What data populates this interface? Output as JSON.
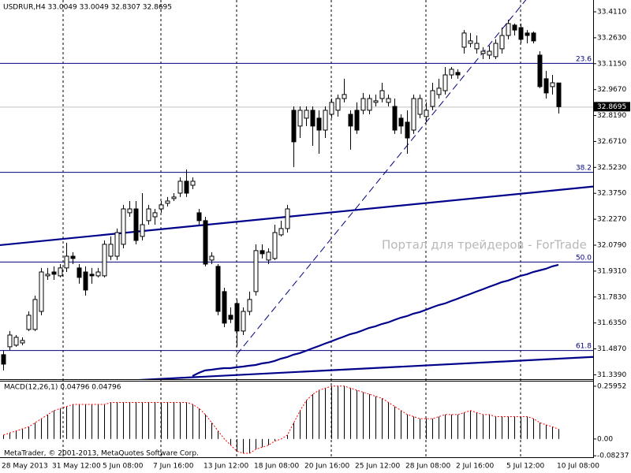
{
  "chart_data": [
    {
      "type": "candlestick",
      "title": "USDRUR,H4 33.0049 33.0049 32.8307 32.8695",
      "watermark": "Портал для трейдеров - ForTrade",
      "categories": [
        "28 May 2013",
        null,
        null,
        null,
        null,
        null,
        null,
        null,
        "31 May 12:00",
        null,
        null,
        null,
        null,
        null,
        null,
        null,
        "5 Jun 08:00",
        null,
        null,
        null,
        null,
        null,
        null,
        null,
        "7 Jun 16:00",
        null,
        null,
        null,
        null,
        null,
        null,
        null,
        "13 Jun 12:00",
        null,
        null,
        null,
        null,
        null,
        null,
        null,
        "18 Jun 08:00",
        null,
        null,
        null,
        null,
        null,
        null,
        null,
        "20 Jun 16:00",
        null,
        null,
        null,
        null,
        null,
        null,
        null,
        "25 Jun 12:00",
        null,
        null,
        null,
        null,
        null,
        null,
        null,
        "28 Jun 08:00",
        null,
        null,
        null,
        null,
        null,
        null,
        null,
        "2 Jul 16:00",
        null,
        null,
        null,
        null,
        null,
        null,
        null,
        "5 Jul 12:00",
        null,
        null,
        null,
        null,
        null,
        null,
        null,
        "10 Jul 08:00"
      ],
      "open": [
        31.454,
        31.499,
        31.508,
        31.521,
        31.598,
        31.598,
        31.701,
        31.904,
        31.926,
        31.904,
        31.949,
        32.016,
        31.949,
        31.926,
        31.913,
        31.904,
        31.904,
        32.016,
        32.016,
        32.084,
        32.264,
        32.286,
        32.129,
        32.219,
        32.241,
        32.286,
        32.318,
        32.345,
        32.376,
        32.444,
        32.421,
        32.264,
        32.219,
        31.994,
        31.958,
        31.814,
        31.679,
        31.746,
        31.589,
        31.701,
        31.814,
        32.048,
        31.994,
        32.003,
        32.138,
        32.174,
        32.849,
        32.759,
        32.804,
        32.849,
        32.804,
        32.736,
        32.826,
        32.849,
        32.916,
        32.826,
        32.849,
        32.849,
        32.849,
        32.894,
        32.916,
        32.894,
        32.871,
        32.804,
        32.781,
        32.736,
        32.826,
        32.813,
        32.871,
        32.939,
        32.961,
        33.051,
        33.065,
        33.209,
        33.231,
        33.2,
        33.173,
        33.164,
        33.155,
        33.2,
        33.276,
        33.335,
        33.321,
        33.29,
        33.29,
        33.164,
        33.029,
        32.984,
        33.0049
      ],
      "high": [
        31.476,
        31.589,
        31.566,
        31.553,
        31.701,
        31.791,
        31.949,
        31.949,
        31.958,
        31.971,
        32.093,
        32.039,
        31.971,
        31.958,
        31.949,
        31.949,
        32.106,
        32.129,
        32.174,
        32.309,
        32.331,
        32.331,
        32.376,
        32.309,
        32.286,
        32.331,
        32.354,
        32.376,
        32.466,
        32.511,
        32.466,
        32.286,
        32.241,
        32.039,
        31.971,
        31.836,
        31.724,
        31.769,
        31.724,
        31.814,
        32.084,
        32.084,
        32.061,
        32.196,
        32.219,
        32.309,
        32.871,
        32.871,
        32.871,
        32.871,
        32.849,
        32.871,
        32.916,
        32.939,
        33.029,
        32.849,
        32.894,
        32.948,
        32.939,
        32.939,
        33.006,
        32.939,
        32.916,
        32.826,
        32.849,
        32.939,
        32.939,
        32.894,
        33.006,
        33.029,
        33.096,
        33.096,
        33.083,
        33.307,
        33.29,
        33.276,
        33.209,
        33.218,
        33.254,
        33.321,
        33.366,
        33.344,
        33.344,
        33.307,
        33.299,
        33.186,
        33.074,
        33.051,
        33.0049
      ],
      "low": [
        31.364,
        31.476,
        31.499,
        31.508,
        31.589,
        31.589,
        31.679,
        31.881,
        31.881,
        31.895,
        31.926,
        31.971,
        31.859,
        31.791,
        31.859,
        31.895,
        31.895,
        31.994,
        31.994,
        32.061,
        32.241,
        32.084,
        32.106,
        32.196,
        32.196,
        32.264,
        32.3,
        32.331,
        32.354,
        32.354,
        32.399,
        32.196,
        31.958,
        31.971,
        31.679,
        31.611,
        31.634,
        31.499,
        31.566,
        31.679,
        31.791,
        32.003,
        31.971,
        31.994,
        32.129,
        32.151,
        32.525,
        32.691,
        32.759,
        32.646,
        32.601,
        32.691,
        32.804,
        32.813,
        32.894,
        32.624,
        32.714,
        32.826,
        32.826,
        32.871,
        32.894,
        32.871,
        32.714,
        32.714,
        32.601,
        32.714,
        32.804,
        32.781,
        32.849,
        32.916,
        32.939,
        33.029,
        33.029,
        33.173,
        33.209,
        33.173,
        33.141,
        33.141,
        33.141,
        33.173,
        33.254,
        33.276,
        33.231,
        33.231,
        33.231,
        32.975,
        32.916,
        32.939,
        32.8307
      ],
      "close": [
        31.4,
        31.566,
        31.553,
        31.535,
        31.679,
        31.769,
        31.926,
        31.913,
        31.913,
        31.949,
        32.016,
        32.003,
        31.895,
        31.823,
        31.904,
        31.926,
        32.084,
        32.084,
        32.151,
        32.286,
        32.286,
        32.106,
        32.196,
        32.286,
        32.264,
        32.309,
        32.331,
        32.354,
        32.444,
        32.376,
        32.444,
        32.219,
        31.971,
        32.016,
        31.701,
        31.634,
        31.656,
        31.589,
        31.701,
        31.769,
        32.048,
        32.03,
        32.039,
        32.151,
        32.174,
        32.286,
        32.669,
        32.849,
        32.849,
        32.759,
        32.736,
        32.849,
        32.894,
        32.916,
        32.939,
        32.759,
        32.736,
        32.916,
        32.916,
        32.903,
        32.961,
        32.916,
        32.736,
        32.759,
        32.691,
        32.916,
        32.916,
        32.849,
        32.961,
        32.975,
        33.051,
        33.083,
        33.051,
        33.29,
        33.245,
        33.231,
        33.186,
        33.186,
        33.231,
        33.276,
        33.344,
        33.307,
        33.254,
        33.276,
        33.245,
        32.984,
        32.948,
        33.006,
        32.8695
      ],
      "up_color": "#ffffff",
      "down_color": "#000000",
      "wick_color": "#000000",
      "lines": [
        {
          "color": "#00008b",
          "values": [
            null,
            null,
            null,
            null,
            null,
            null,
            null,
            null,
            null,
            null,
            null,
            null,
            null,
            null,
            null,
            null,
            null,
            null,
            null,
            null,
            null,
            null,
            null,
            null,
            null,
            null,
            null,
            null,
            null,
            null,
            31.332,
            31.35,
            31.364,
            31.368,
            31.373,
            31.377,
            31.377,
            31.382,
            31.386,
            31.391,
            31.395,
            31.404,
            31.409,
            31.418,
            31.431,
            31.44,
            31.454,
            31.463,
            31.476,
            31.49,
            31.503,
            31.517,
            31.53,
            31.544,
            31.557,
            31.571,
            31.58,
            31.593,
            31.607,
            31.616,
            31.629,
            31.638,
            31.652,
            31.665,
            31.674,
            31.688,
            31.697,
            31.71,
            31.724,
            31.737,
            31.746,
            31.76,
            31.773,
            31.787,
            31.8,
            31.814,
            31.827,
            31.841,
            31.854,
            31.868,
            31.877,
            31.89,
            31.904,
            31.913,
            31.926,
            31.935,
            31.944,
            31.958,
            31.967
          ]
        }
      ],
      "trendlines": [
        {
          "points": [
            [
              0,
              32.081
            ],
            [
              88,
              32.394
            ]
          ],
          "extend": "both",
          "dashed": false,
          "color": "#00008b"
        },
        {
          "points": [
            [
              29,
              31.323
            ],
            [
              88,
              31.431
            ]
          ],
          "extend": "both",
          "dashed": false,
          "color": "#00008b"
        },
        {
          "points": [
            [
              37,
              31.454
            ],
            [
              82,
              33.442
            ]
          ],
          "extend": "right",
          "dashed": true,
          "color": "#000080"
        }
      ],
      "levels": [
        {
          "label": "23.6",
          "value": 33.119
        },
        {
          "label": "38.2",
          "value": 32.497
        },
        {
          "label": "50.0",
          "value": 31.985
        },
        {
          "label": "61.8",
          "value": 31.48
        }
      ],
      "level_color": "#000080",
      "last_price": 32.8695,
      "ylim": [
        31.314,
        33.4785
      ],
      "yticks": [
        {
          "value": 33.411,
          "label": "33.4110"
        },
        {
          "value": 33.263,
          "label": "33.2630"
        },
        {
          "value": 33.115,
          "label": "33.1150"
        },
        {
          "value": 32.967,
          "label": "32.9670"
        },
        {
          "value": 32.819,
          "label": "32.8190"
        },
        {
          "value": 32.671,
          "label": "32.6710"
        },
        {
          "value": 32.523,
          "label": "32.5230"
        },
        {
          "value": 32.375,
          "label": "32.3750"
        },
        {
          "value": 32.227,
          "label": "32.2270"
        },
        {
          "value": 32.079,
          "label": "32.0790"
        },
        {
          "value": 31.931,
          "label": "31.9310"
        },
        {
          "value": 31.783,
          "label": "31.7830"
        },
        {
          "value": 31.635,
          "label": "31.6350"
        },
        {
          "value": 31.487,
          "label": "31.4870"
        },
        {
          "value": 31.339,
          "label": "31.3390"
        }
      ],
      "grid": false
    },
    {
      "type": "bar",
      "title": "MACD(12,26,1) 0.04796 0.04796",
      "footer": "MetaTrader, © 2001-2013, MetaQuotes Software Corp.",
      "values": [
        0.02,
        0.03,
        0.04,
        0.05,
        0.06,
        0.08,
        0.1,
        0.12,
        0.14,
        0.15,
        0.16,
        0.17,
        0.17,
        0.17,
        0.17,
        0.17,
        0.17,
        0.18,
        0.18,
        0.18,
        0.18,
        0.18,
        0.18,
        0.18,
        0.18,
        0.18,
        0.18,
        0.18,
        0.18,
        0.18,
        0.17,
        0.15,
        0.12,
        0.08,
        0.04,
        0.0,
        -0.03,
        -0.06,
        -0.07,
        -0.07,
        -0.05,
        -0.04,
        -0.03,
        -0.01,
        0.0,
        0.02,
        0.08,
        0.14,
        0.19,
        0.22,
        0.24,
        0.25,
        0.26,
        0.26,
        0.26,
        0.25,
        0.24,
        0.23,
        0.22,
        0.21,
        0.2,
        0.18,
        0.16,
        0.14,
        0.12,
        0.11,
        0.1,
        0.1,
        0.1,
        0.11,
        0.12,
        0.12,
        0.12,
        0.13,
        0.14,
        0.13,
        0.12,
        0.12,
        0.11,
        0.11,
        0.11,
        0.11,
        0.11,
        0.11,
        0.1,
        0.08,
        0.07,
        0.06,
        0.04796
      ],
      "color": "#000000",
      "signal_color": "#ff0000",
      "ylim": [
        -0.0895,
        0.2825
      ],
      "yticks": [
        0.25952,
        {
          "value": 0,
          "label": "0.00"
        },
        -0.08237
      ]
    }
  ]
}
